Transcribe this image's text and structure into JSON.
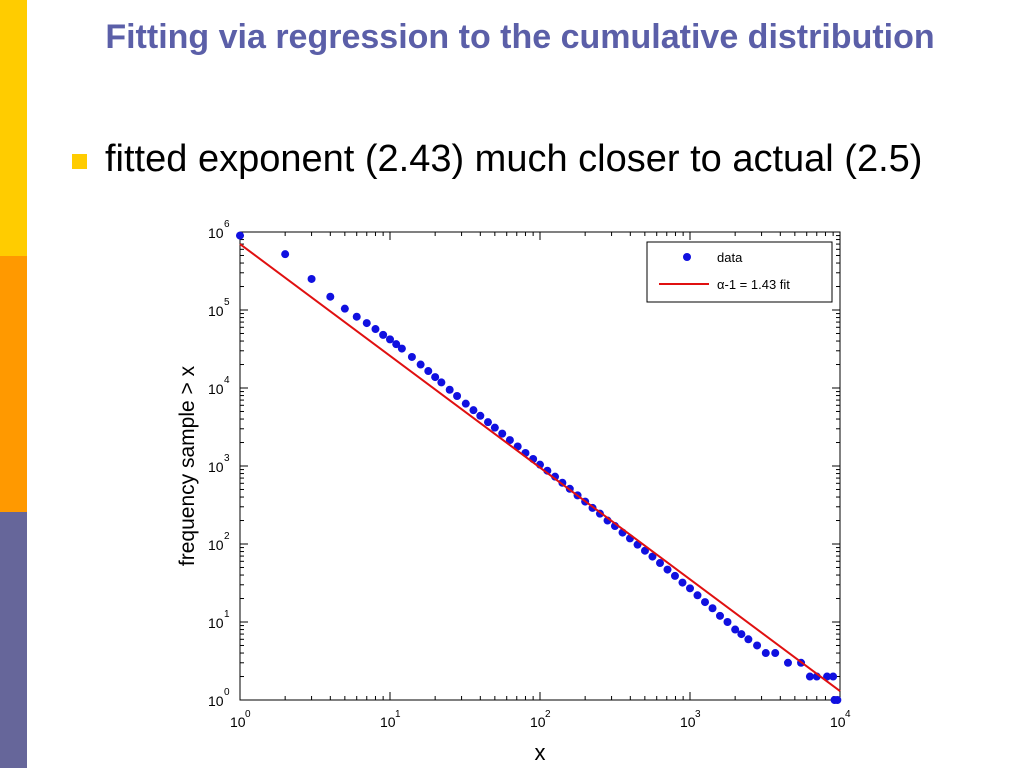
{
  "slide": {
    "title": "Fitting via regression to the cumulative distribution",
    "bullet": "fitted exponent (2.43) much closer to actual (2.5)",
    "colors": {
      "title": "#5B5FA8",
      "bullet_marker": "#FFCC00",
      "side_bar": [
        "#FFCC00",
        "#FF9900",
        "#66669A"
      ]
    }
  },
  "chart_data": {
    "type": "scatter",
    "xscale": "log",
    "yscale": "log",
    "xlabel": "x",
    "ylabel": "frequency sample > x",
    "xlim": [
      1,
      10000
    ],
    "ylim": [
      1,
      1000000
    ],
    "x_ticks": [
      {
        "base": "10",
        "exp": "0",
        "value": 1
      },
      {
        "base": "10",
        "exp": "1",
        "value": 10
      },
      {
        "base": "10",
        "exp": "2",
        "value": 100
      },
      {
        "base": "10",
        "exp": "3",
        "value": 1000
      },
      {
        "base": "10",
        "exp": "4",
        "value": 10000
      }
    ],
    "y_ticks": [
      {
        "base": "10",
        "exp": "0",
        "value": 1
      },
      {
        "base": "10",
        "exp": "1",
        "value": 10
      },
      {
        "base": "10",
        "exp": "2",
        "value": 100
      },
      {
        "base": "10",
        "exp": "3",
        "value": 1000
      },
      {
        "base": "10",
        "exp": "4",
        "value": 10000
      },
      {
        "base": "10",
        "exp": "5",
        "value": 100000
      },
      {
        "base": "10",
        "exp": "6",
        "value": 1000000
      }
    ],
    "legend": {
      "placement": "top-right",
      "entries": [
        {
          "label": "data",
          "type": "marker",
          "color": "#1010E0"
        },
        {
          "label": "α-1 = 1.43 fit",
          "type": "line",
          "color": "#E01010"
        }
      ]
    },
    "series": [
      {
        "name": "data",
        "color": "#1010E0",
        "points": [
          [
            1,
            900000
          ],
          [
            2,
            520000
          ],
          [
            3,
            250000
          ],
          [
            4,
            148000
          ],
          [
            5,
            104000
          ],
          [
            6,
            82000
          ],
          [
            7,
            68000
          ],
          [
            8,
            57000
          ],
          [
            9,
            48000
          ],
          [
            10,
            42000
          ],
          [
            11,
            36500
          ],
          [
            12,
            32000
          ],
          [
            14,
            25000
          ],
          [
            16,
            20000
          ],
          [
            18,
            16500
          ],
          [
            20,
            13800
          ],
          [
            22,
            11800
          ],
          [
            25,
            9500
          ],
          [
            28,
            7900
          ],
          [
            32,
            6300
          ],
          [
            36,
            5200
          ],
          [
            40,
            4400
          ],
          [
            45,
            3650
          ],
          [
            50,
            3100
          ],
          [
            56,
            2600
          ],
          [
            63,
            2150
          ],
          [
            71,
            1780
          ],
          [
            80,
            1470
          ],
          [
            90,
            1230
          ],
          [
            100,
            1040
          ],
          [
            112,
            870
          ],
          [
            126,
            730
          ],
          [
            141,
            610
          ],
          [
            158,
            510
          ],
          [
            178,
            420
          ],
          [
            200,
            350
          ],
          [
            224,
            290
          ],
          [
            251,
            245
          ],
          [
            282,
            200
          ],
          [
            316,
            170
          ],
          [
            355,
            140
          ],
          [
            398,
            118
          ],
          [
            447,
            98
          ],
          [
            501,
            82
          ],
          [
            562,
            69
          ],
          [
            631,
            57
          ],
          [
            708,
            47
          ],
          [
            794,
            39
          ],
          [
            891,
            32
          ],
          [
            1000,
            27
          ],
          [
            1122,
            22
          ],
          [
            1259,
            18
          ],
          [
            1413,
            15
          ],
          [
            1585,
            12
          ],
          [
            1778,
            10
          ],
          [
            2000,
            8
          ],
          [
            2200,
            7
          ],
          [
            2450,
            6
          ],
          [
            2800,
            5
          ],
          [
            3200,
            4
          ],
          [
            3700,
            4
          ],
          [
            4500,
            3
          ],
          [
            5500,
            3
          ],
          [
            6300,
            2
          ],
          [
            7000,
            2
          ],
          [
            8200,
            2
          ],
          [
            9000,
            2
          ],
          [
            9200,
            1
          ],
          [
            9600,
            1
          ]
        ]
      },
      {
        "name": "α-1 = 1.43 fit",
        "color": "#E01010",
        "type": "line",
        "slope": -1.43,
        "points": [
          [
            1,
            700000
          ],
          [
            10000,
            1.3
          ]
        ]
      }
    ]
  }
}
